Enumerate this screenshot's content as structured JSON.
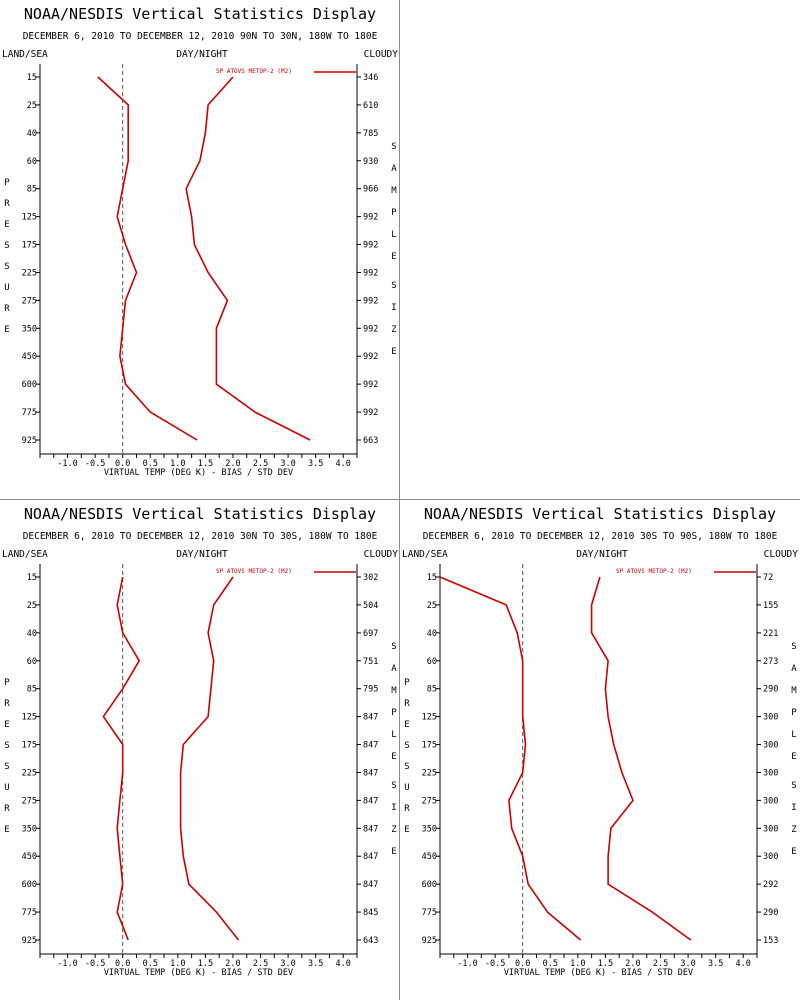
{
  "chart_data": [
    {
      "type": "line",
      "title": "NOAA/NESDIS Vertical Statistics Display",
      "subtitle": "DECEMBER 6, 2010 TO DECEMBER 12, 2010 90N TO 30N, 180W TO 180E",
      "left_header": "LAND/SEA",
      "center_header": "DAY/NIGHT",
      "right_header": "CLOUDY",
      "left_axis_label": "PRESSURE",
      "right_axis_label": "SAMPLE SIZE",
      "xlabel": "VIRTUAL TEMP (DEG K) - BIAS / STD DEV",
      "xlim": [
        -1.5,
        4.25
      ],
      "x_ticks": [
        -1.0,
        -0.5,
        0.0,
        0.5,
        1.0,
        1.5,
        2.0,
        2.5,
        3.0,
        3.5,
        4.0
      ],
      "legend": "SP ATOVS METOP-2 (M2)",
      "levels": [
        "15",
        "25",
        "40",
        "60",
        "85",
        "125",
        "175",
        "225",
        "275",
        "350",
        "450",
        "600",
        "775",
        "925"
      ],
      "sample_size": [
        "346",
        "610",
        "785",
        "930",
        "966",
        "992",
        "992",
        "992",
        "992",
        "992",
        "992",
        "992",
        "992",
        "663"
      ],
      "series": [
        {
          "role": "bias",
          "values": [
            -0.45,
            0.1,
            0.1,
            0.1,
            0.0,
            -0.1,
            0.05,
            0.25,
            0.05,
            0.0,
            -0.05,
            0.05,
            0.5,
            1.35
          ]
        },
        {
          "role": "std_dev",
          "values": [
            2.0,
            1.55,
            1.5,
            1.4,
            1.15,
            1.25,
            1.3,
            1.55,
            1.9,
            1.7,
            1.7,
            1.7,
            2.4,
            3.4
          ]
        }
      ]
    },
    {
      "type": "line",
      "title": "NOAA/NESDIS Vertical Statistics Display",
      "subtitle": "DECEMBER 6, 2010 TO DECEMBER 12, 2010 30N TO 30S, 180W TO 180E",
      "left_header": "LAND/SEA",
      "center_header": "DAY/NIGHT",
      "right_header": "CLOUDY",
      "left_axis_label": "PRESSURE",
      "right_axis_label": "SAMPLE SIZE",
      "xlabel": "VIRTUAL TEMP (DEG K) - BIAS / STD DEV",
      "xlim": [
        -1.5,
        4.25
      ],
      "x_ticks": [
        -1.0,
        -0.5,
        0.0,
        0.5,
        1.0,
        1.5,
        2.0,
        2.5,
        3.0,
        3.5,
        4.0
      ],
      "legend": "SP ATOVS METOP-2 (M2)",
      "levels": [
        "15",
        "25",
        "40",
        "60",
        "85",
        "125",
        "175",
        "225",
        "275",
        "350",
        "450",
        "600",
        "775",
        "925"
      ],
      "sample_size": [
        "302",
        "504",
        "697",
        "751",
        "795",
        "847",
        "847",
        "847",
        "847",
        "847",
        "847",
        "847",
        "845",
        "643"
      ],
      "series": [
        {
          "role": "bias",
          "values": [
            0.0,
            -0.1,
            0.0,
            0.3,
            0.0,
            -0.35,
            0.0,
            0.0,
            -0.05,
            -0.1,
            -0.05,
            0.0,
            -0.1,
            0.1
          ]
        },
        {
          "role": "std_dev",
          "values": [
            2.0,
            1.65,
            1.55,
            1.65,
            1.6,
            1.55,
            1.1,
            1.05,
            1.05,
            1.05,
            1.1,
            1.2,
            1.7,
            2.1
          ]
        }
      ]
    },
    {
      "type": "line",
      "title": "NOAA/NESDIS Vertical Statistics Display",
      "subtitle": "DECEMBER 6, 2010 TO DECEMBER 12, 2010 30S TO 90S, 180W TO 180E",
      "left_header": "LAND/SEA",
      "center_header": "DAY/NIGHT",
      "right_header": "CLOUDY",
      "left_axis_label": "PRESSURE",
      "right_axis_label": "SAMPLE SIZE",
      "xlabel": "VIRTUAL TEMP (DEG K) - BIAS / STD DEV",
      "xlim": [
        -1.5,
        4.25
      ],
      "x_ticks": [
        -1.0,
        -0.5,
        0.0,
        0.5,
        1.0,
        1.5,
        2.0,
        2.5,
        3.0,
        3.5,
        4.0
      ],
      "legend": "SP ATOVS METOP-2 (M2)",
      "levels": [
        "15",
        "25",
        "40",
        "60",
        "85",
        "125",
        "175",
        "225",
        "275",
        "350",
        "450",
        "600",
        "775",
        "925"
      ],
      "sample_size": [
        "72",
        "155",
        "221",
        "273",
        "290",
        "300",
        "300",
        "300",
        "300",
        "300",
        "300",
        "292",
        "290",
        "153"
      ],
      "series": [
        {
          "role": "bias",
          "values": [
            -1.5,
            -0.3,
            -0.1,
            0.0,
            0.0,
            0.0,
            0.05,
            0.0,
            -0.25,
            -0.2,
            0.0,
            0.1,
            0.45,
            1.05
          ]
        },
        {
          "role": "std_dev",
          "values": [
            1.4,
            1.25,
            1.25,
            1.55,
            1.5,
            1.55,
            1.65,
            1.8,
            2.0,
            1.6,
            1.55,
            1.55,
            2.35,
            3.05
          ]
        }
      ]
    }
  ],
  "colors": {
    "line": "#cc0000",
    "axis": "#000000",
    "zero_line": "#555555",
    "divider": "#8c8c8c"
  }
}
